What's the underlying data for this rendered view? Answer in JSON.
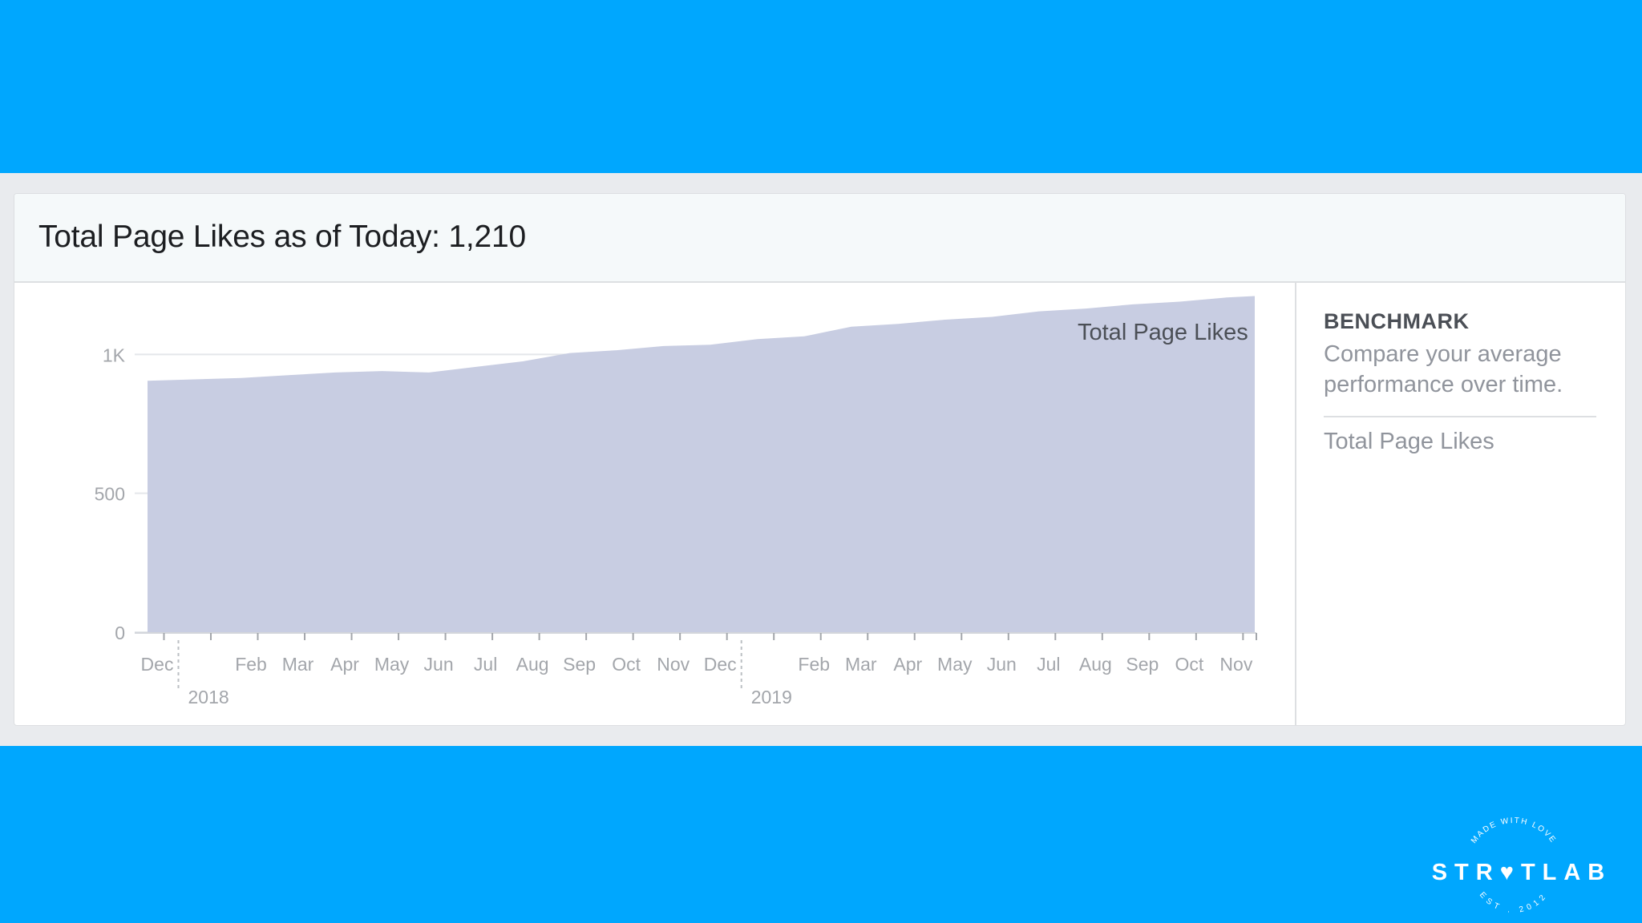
{
  "card": {
    "title": "Total Page Likes as of Today: 1,210"
  },
  "benchmark": {
    "title": "BENCHMARK",
    "description": "Compare your average performance over time.",
    "metric": "Total Page Likes"
  },
  "logo": {
    "wordmark": "STR♥TLAB",
    "top_arc": "MADE WITH LOVE",
    "bottom_arc": "EST . 2012"
  },
  "colors": {
    "background": "#00a7fe",
    "area_fill": "#c8cde2",
    "legend_swatch": "#c8cde2"
  },
  "chart_data": {
    "type": "area",
    "legend": {
      "position": "top-right",
      "entries": [
        "Total Page Likes"
      ]
    },
    "grid": true,
    "ylim": [
      0,
      1200
    ],
    "y_ticks": [
      {
        "value": 0,
        "label": "0"
      },
      {
        "value": 500,
        "label": "500"
      },
      {
        "value": 1000,
        "label": "1K"
      }
    ],
    "x_tick_labels": [
      {
        "i": 0,
        "label": "Dec"
      },
      {
        "i": 2,
        "label": "Feb"
      },
      {
        "i": 3,
        "label": "Mar"
      },
      {
        "i": 4,
        "label": "Apr"
      },
      {
        "i": 5,
        "label": "May"
      },
      {
        "i": 6,
        "label": "Jun"
      },
      {
        "i": 7,
        "label": "Jul"
      },
      {
        "i": 8,
        "label": "Aug"
      },
      {
        "i": 9,
        "label": "Sep"
      },
      {
        "i": 10,
        "label": "Oct"
      },
      {
        "i": 11,
        "label": "Nov"
      },
      {
        "i": 12,
        "label": "Dec"
      },
      {
        "i": 14,
        "label": "Feb"
      },
      {
        "i": 15,
        "label": "Mar"
      },
      {
        "i": 16,
        "label": "Apr"
      },
      {
        "i": 17,
        "label": "May"
      },
      {
        "i": 18,
        "label": "Jun"
      },
      {
        "i": 19,
        "label": "Jul"
      },
      {
        "i": 20,
        "label": "Aug"
      },
      {
        "i": 21,
        "label": "Sep"
      },
      {
        "i": 22,
        "label": "Oct"
      },
      {
        "i": 23,
        "label": "Nov"
      }
    ],
    "year_labels": [
      {
        "i": 1,
        "label": "2018"
      },
      {
        "i": 13,
        "label": "2019"
      }
    ],
    "series": [
      {
        "name": "Total Page Likes",
        "x": [
          0,
          1,
          2,
          3,
          4,
          5,
          6,
          7,
          8,
          9,
          10,
          11,
          12,
          13,
          14,
          15,
          16,
          17,
          18,
          19,
          20,
          21,
          22,
          23,
          23.6
        ],
        "values": [
          905,
          910,
          915,
          925,
          935,
          940,
          935,
          955,
          975,
          1005,
          1015,
          1030,
          1035,
          1055,
          1065,
          1100,
          1110,
          1125,
          1135,
          1155,
          1165,
          1180,
          1190,
          1205,
          1210
        ]
      }
    ]
  }
}
